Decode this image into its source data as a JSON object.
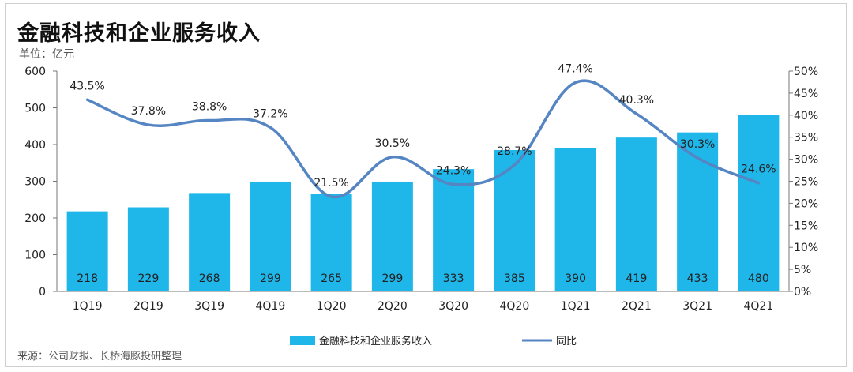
{
  "header": {
    "title": "金融科技和企业服务收入",
    "unit": "单位：亿元"
  },
  "footer": {
    "source": "来源：公司财报、长桥海豚投研整理"
  },
  "colors": {
    "bar": "#1fb6ea",
    "line": "#5585c2"
  },
  "chart_data": {
    "type": "bar",
    "categories": [
      "1Q19",
      "2Q19",
      "3Q19",
      "4Q19",
      "1Q20",
      "2Q20",
      "3Q20",
      "4Q20",
      "1Q21",
      "2Q21",
      "3Q21",
      "4Q21"
    ],
    "series": [
      {
        "name": "金融科技和企业服务收入",
        "type": "bar",
        "axis": "left",
        "values": [
          218,
          229,
          268,
          299,
          265,
          299,
          333,
          385,
          390,
          419,
          433,
          480
        ],
        "labels": [
          "218",
          "229",
          "268",
          "299",
          "265",
          "299",
          "333",
          "385",
          "390",
          "419",
          "433",
          "480"
        ]
      },
      {
        "name": "同比",
        "type": "line",
        "axis": "right",
        "values": [
          43.5,
          37.8,
          38.8,
          37.2,
          21.5,
          30.5,
          24.3,
          28.7,
          47.4,
          40.3,
          30.3,
          24.6
        ],
        "labels": [
          "43.5%",
          "37.8%",
          "38.8%",
          "37.2%",
          "21.5%",
          "30.5%",
          "24.3%",
          "28.7%",
          "47.4%",
          "40.3%",
          "30.3%",
          "24.6%"
        ]
      }
    ],
    "left_axis": {
      "ylim": [
        0,
        600
      ],
      "ticks": [
        "0",
        "100",
        "200",
        "300",
        "400",
        "500",
        "600"
      ]
    },
    "right_axis": {
      "ylim": [
        0,
        50
      ],
      "ticks": [
        "0%",
        "5%",
        "10%",
        "15%",
        "20%",
        "25%",
        "30%",
        "35%",
        "40%",
        "45%",
        "50%"
      ]
    },
    "grid": false,
    "legend_position": "bottom"
  }
}
